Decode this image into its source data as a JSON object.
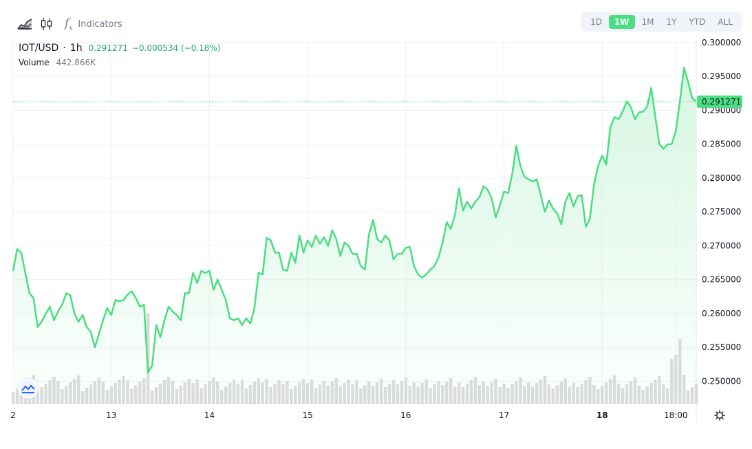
{
  "toolbar": {
    "icons": [
      "area-chart-icon",
      "candlestick-icon",
      "fx-icon"
    ],
    "indicators_label": "Indicators",
    "ranges": [
      "1D",
      "1W",
      "1M",
      "1Y",
      "YTD",
      "ALL"
    ],
    "active_range": "1W"
  },
  "legend": {
    "symbol": "IOT/USD",
    "separator": "·",
    "interval": "1h",
    "last": "0.291271",
    "change": "−0.000534 (−0.18%)",
    "volume_label": "Volume",
    "volume_value": "442.866K"
  },
  "colors": {
    "line": "#4ade80",
    "area_top": "#c9f4d9",
    "volume": "#d6d6d6",
    "grid": "#eef0f3",
    "price_tag": "#4ade80"
  },
  "chart_data": {
    "type": "area",
    "x_ticks": [
      {
        "label": "2",
        "i": 0,
        "bold": false
      },
      {
        "label": "13",
        "i": 24,
        "bold": false
      },
      {
        "label": "14",
        "i": 48,
        "bold": false
      },
      {
        "label": "15",
        "i": 72,
        "bold": false
      },
      {
        "label": "16",
        "i": 96,
        "bold": false
      },
      {
        "label": "17",
        "i": 120,
        "bold": false
      },
      {
        "label": "18",
        "i": 144,
        "bold": true
      },
      {
        "label": "18:00",
        "i": 162,
        "bold": false
      }
    ],
    "y_ticks": [
      "0.300000",
      "0.295000",
      "0.290000",
      "0.285000",
      "0.280000",
      "0.275000",
      "0.270000",
      "0.265000",
      "0.260000",
      "0.255000",
      "0.250000"
    ],
    "ylim": [
      0.2466,
      0.3004
    ],
    "last_price": 0.291271,
    "last_price_label": "0.291271",
    "price": [
      0.2663,
      0.2695,
      0.269,
      0.266,
      0.263,
      0.2623,
      0.258,
      0.2588,
      0.26,
      0.261,
      0.259,
      0.2603,
      0.2613,
      0.263,
      0.2627,
      0.26,
      0.2588,
      0.2598,
      0.258,
      0.2573,
      0.255,
      0.257,
      0.259,
      0.2608,
      0.2598,
      0.262,
      0.2618,
      0.262,
      0.2628,
      0.2633,
      0.2623,
      0.261,
      0.2613,
      0.2513,
      0.2523,
      0.2583,
      0.2565,
      0.259,
      0.261,
      0.2603,
      0.2598,
      0.259,
      0.263,
      0.263,
      0.266,
      0.2645,
      0.2663,
      0.266,
      0.2663,
      0.2635,
      0.265,
      0.2635,
      0.262,
      0.2593,
      0.259,
      0.2593,
      0.2583,
      0.2593,
      0.2585,
      0.2608,
      0.266,
      0.2658,
      0.2712,
      0.2708,
      0.269,
      0.269,
      0.2665,
      0.2663,
      0.269,
      0.2675,
      0.2715,
      0.269,
      0.2708,
      0.2698,
      0.2715,
      0.2703,
      0.2713,
      0.27,
      0.2723,
      0.271,
      0.2685,
      0.2705,
      0.27,
      0.2688,
      0.2688,
      0.267,
      0.2665,
      0.2717,
      0.2738,
      0.271,
      0.2705,
      0.2715,
      0.2708,
      0.268,
      0.2688,
      0.2688,
      0.2697,
      0.2698,
      0.267,
      0.2658,
      0.2653,
      0.2658,
      0.2665,
      0.267,
      0.2683,
      0.2705,
      0.2735,
      0.2725,
      0.2745,
      0.2785,
      0.2752,
      0.2765,
      0.2755,
      0.2765,
      0.2772,
      0.2788,
      0.2783,
      0.277,
      0.2742,
      0.276,
      0.278,
      0.2778,
      0.2805,
      0.2848,
      0.2818,
      0.2802,
      0.2798,
      0.2795,
      0.2798,
      0.2775,
      0.275,
      0.2767,
      0.2755,
      0.2748,
      0.2732,
      0.2765,
      0.2778,
      0.2758,
      0.2773,
      0.2775,
      0.2728,
      0.274,
      0.279,
      0.2818,
      0.2833,
      0.282,
      0.2875,
      0.289,
      0.2887,
      0.2898,
      0.2913,
      0.2905,
      0.2887,
      0.2897,
      0.2898,
      0.2905,
      0.2933,
      0.289,
      0.285,
      0.2843,
      0.285,
      0.285,
      0.287,
      0.2913,
      0.2963,
      0.2942,
      0.2918,
      0.2913
    ]
  }
}
